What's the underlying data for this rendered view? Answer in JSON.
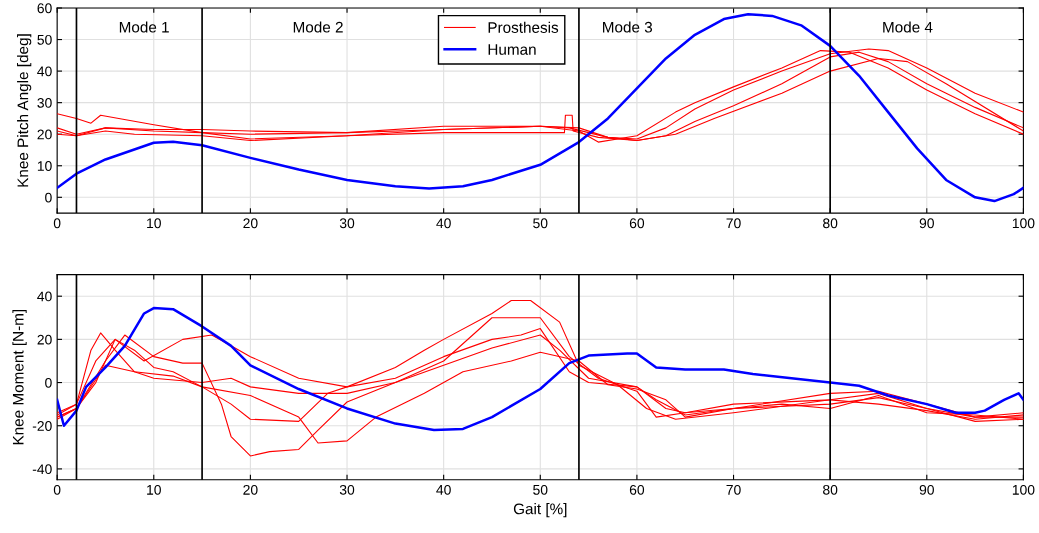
{
  "chart_data": [
    {
      "type": "line",
      "ylabel": "Knee Pitch Angle [deg]",
      "xlim": [
        0,
        100
      ],
      "xticks": [
        0,
        10,
        20,
        30,
        40,
        50,
        60,
        70,
        80,
        90,
        100
      ],
      "ylim": [
        -5,
        60
      ],
      "yticks": [
        0,
        10,
        20,
        30,
        40,
        50,
        60
      ],
      "grid": true,
      "legend": "top",
      "line_style": "solid",
      "marker": "none",
      "ref_lines": [
        {
          "axis": "x",
          "value": 2,
          "color": "#000000"
        },
        {
          "axis": "x",
          "value": 15,
          "color": "#000000"
        },
        {
          "axis": "x",
          "value": 54,
          "color": "#000000"
        },
        {
          "axis": "x",
          "value": 80,
          "color": "#000000"
        }
      ],
      "annotations": [
        "Mode 1",
        "Mode 2",
        "Mode 3",
        "Mode 4"
      ],
      "series": [
        {
          "name": "Prosthesis",
          "color": "#ff0000",
          "x": [
            0,
            2,
            5,
            10,
            15,
            20,
            30,
            40,
            50,
            54,
            57,
            60,
            63,
            66,
            70,
            75,
            80,
            84,
            86,
            90,
            95,
            100
          ],
          "values": [
            21,
            19.5,
            22,
            21,
            20.5,
            20,
            20.5,
            21.5,
            22.5,
            22,
            19,
            18.5,
            22,
            28,
            34,
            40,
            45.5,
            47,
            46.5,
            41,
            33,
            27
          ]
        },
        {
          "color": "#ff0000",
          "x": [
            0,
            2,
            3.5,
            4.5,
            10,
            15,
            20,
            30,
            40,
            50,
            53,
            57,
            60,
            63,
            66,
            70,
            75,
            80,
            83,
            86,
            90,
            95,
            100
          ],
          "values": [
            26.5,
            25,
            23.5,
            26,
            23,
            20.5,
            18.5,
            19.5,
            21.5,
            22.5,
            22,
            19,
            18,
            19.5,
            24,
            29,
            36,
            44.5,
            46,
            43,
            36,
            28.5,
            22
          ]
        },
        {
          "color": "#ff0000",
          "x": [
            0,
            2,
            5,
            10,
            15,
            20,
            30,
            40,
            50,
            54,
            56,
            60,
            64,
            66,
            70,
            75,
            79,
            82,
            86,
            90,
            95,
            100
          ],
          "values": [
            22,
            20,
            22,
            21.5,
            21.5,
            21,
            20.5,
            22.5,
            22.5,
            21,
            17.5,
            19.5,
            27,
            30,
            35,
            41,
            46.5,
            46,
            41,
            34,
            26.5,
            20
          ]
        },
        {
          "color": "#ff0000",
          "x": [
            0,
            2,
            5,
            8,
            15,
            20,
            30,
            40,
            50,
            52.5,
            52.6,
            53.3,
            53.4,
            56,
            60,
            64,
            68,
            75,
            80,
            85,
            88,
            92,
            100
          ],
          "values": [
            20,
            19.5,
            21,
            20,
            19.5,
            18,
            19.5,
            20.5,
            20.5,
            20.5,
            26,
            26,
            21,
            19,
            18,
            20,
            25,
            33,
            40,
            44,
            43,
            36,
            21
          ]
        },
        {
          "name": "Human",
          "color": "#0000ff",
          "x": [
            0,
            2,
            5,
            10,
            12,
            15,
            20,
            25,
            30,
            35,
            38.5,
            42,
            45,
            50,
            54,
            57,
            60,
            63,
            66,
            69,
            71.5,
            74,
            77,
            80,
            83,
            86,
            89,
            92,
            95,
            97,
            99,
            100
          ],
          "values": [
            3,
            7.5,
            12,
            17.3,
            17.6,
            16.5,
            12.5,
            8.8,
            5.5,
            3.5,
            2.8,
            3.5,
            5.5,
            10.3,
            17.5,
            25,
            34.5,
            44,
            51.5,
            56.5,
            58,
            57.5,
            54.5,
            48,
            38.5,
            27,
            15.5,
            5.5,
            0,
            -1.2,
            1,
            3
          ]
        }
      ]
    },
    {
      "type": "line",
      "xlabel": "Gait [%]",
      "ylabel": "Knee Moment [N-m]",
      "xlim": [
        0,
        100
      ],
      "xticks": [
        0,
        10,
        20,
        30,
        40,
        50,
        60,
        70,
        80,
        90,
        100
      ],
      "ylim": [
        -45,
        50
      ],
      "yticks": [
        -40,
        -20,
        0,
        20,
        40
      ],
      "grid": true,
      "line_style": "solid",
      "marker": "none",
      "ref_lines": [
        {
          "axis": "x",
          "value": 2,
          "color": "#000000"
        },
        {
          "axis": "x",
          "value": 15,
          "color": "#000000"
        },
        {
          "axis": "x",
          "value": 54,
          "color": "#000000"
        },
        {
          "axis": "x",
          "value": 80,
          "color": "#000000"
        }
      ],
      "series": [
        {
          "color": "#ff0000",
          "x": [
            0,
            2,
            3.5,
            4.5,
            6,
            8,
            12,
            15,
            18,
            20,
            25,
            28,
            30,
            35,
            40,
            45,
            48,
            50,
            53,
            55,
            60,
            62,
            65,
            70,
            75,
            80,
            85,
            90,
            95,
            100
          ],
          "values": [
            -15,
            -10,
            15,
            23,
            15,
            5,
            3,
            -2,
            -10,
            -17,
            -18,
            -5,
            -2,
            2,
            12,
            20,
            22,
            25,
            5,
            0,
            -2,
            -8,
            -15,
            -12,
            -10,
            -12,
            -6,
            -14,
            -15,
            -17
          ]
        },
        {
          "color": "#ff0000",
          "x": [
            0,
            2,
            5,
            7,
            10,
            13,
            15,
            17,
            18,
            20,
            22,
            25,
            27,
            30,
            35,
            40,
            45,
            50,
            52,
            55,
            60,
            63,
            65,
            70,
            80,
            85,
            90,
            95,
            100
          ],
          "values": [
            -17,
            -12,
            10,
            22,
            12,
            9,
            9,
            -10,
            -25,
            -34,
            -32,
            -31,
            -22,
            -9,
            0,
            8,
            16,
            22,
            15,
            2,
            -2,
            -12,
            -14,
            -10,
            -8,
            -5,
            -12,
            -18,
            -17
          ]
        },
        {
          "color": "#ff0000",
          "x": [
            0,
            2,
            4,
            6,
            9,
            13,
            16,
            18,
            20,
            25,
            30,
            35,
            38,
            40,
            45,
            47,
            49,
            52,
            54,
            58,
            61,
            64,
            70,
            80,
            85,
            90,
            95,
            100
          ],
          "values": [
            -14,
            -10,
            10,
            20,
            10,
            20,
            22,
            17,
            12,
            2,
            -2,
            7,
            15,
            20,
            32,
            38,
            38,
            28,
            8,
            -1,
            -12,
            -17,
            -14,
            -8,
            -10,
            -13,
            -17,
            -15
          ]
        },
        {
          "color": "#ff0000",
          "x": [
            0,
            2,
            4,
            6,
            8,
            10,
            12,
            15,
            20,
            25,
            27,
            30,
            33,
            38,
            42,
            47,
            50,
            54,
            57,
            60,
            63,
            65,
            70,
            80,
            85,
            90,
            95,
            100
          ],
          "values": [
            -16,
            -12,
            0,
            20,
            15,
            7,
            5,
            -2,
            -6,
            -16,
            -28,
            -27,
            -16,
            -5,
            5,
            10,
            14,
            10,
            -1,
            -3,
            -8,
            -16,
            -12,
            -10,
            -7,
            -12,
            -16,
            -14
          ]
        },
        {
          "color": "#ff0000",
          "x": [
            0,
            2,
            5,
            8,
            10,
            15,
            18,
            20,
            25,
            30,
            35,
            40,
            45,
            50,
            53,
            56,
            60,
            62,
            65,
            70,
            80,
            85,
            90,
            95,
            100
          ],
          "values": [
            -16,
            -12,
            8,
            5,
            2,
            0,
            2,
            -2,
            -5,
            -5,
            0,
            10,
            30,
            30,
            12,
            2,
            -4,
            -16,
            -14,
            -12,
            -5,
            -4,
            -10,
            -16,
            -16
          ]
        },
        {
          "color": "#0000ff",
          "x": [
            0,
            0.7,
            2,
            3,
            5,
            7,
            9,
            10,
            12,
            15,
            18,
            20,
            25,
            30,
            35,
            39,
            42,
            45,
            50,
            53,
            55,
            57,
            59,
            60,
            62,
            65,
            69,
            72,
            76,
            80,
            83,
            86,
            90,
            93,
            95,
            96,
            98,
            99.5,
            100
          ],
          "values": [
            -8,
            -20,
            -13,
            -2,
            7,
            17,
            32,
            34.5,
            34,
            26,
            17,
            8,
            -3,
            -12,
            -19,
            -22,
            -21.5,
            -16,
            -3,
            9,
            12.5,
            13,
            13.5,
            13.5,
            7,
            6,
            6,
            4,
            2,
            0,
            -1.5,
            -6,
            -10,
            -14,
            -14,
            -13,
            -8,
            -5,
            -8
          ]
        }
      ]
    }
  ]
}
